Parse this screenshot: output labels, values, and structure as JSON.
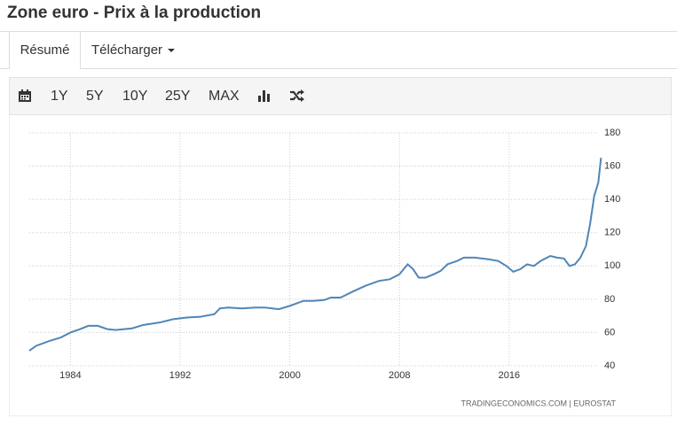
{
  "header": {
    "title": "Zone euro - Prix à la production"
  },
  "tabs": [
    "Résumé",
    "Télécharger"
  ],
  "toolbar": {
    "ranges": [
      "1Y",
      "5Y",
      "10Y",
      "25Y",
      "MAX"
    ]
  },
  "source": "TRADINGECONOMICS.COM  |  EUROSTAT",
  "chart_data": {
    "type": "line",
    "x": [
      1981,
      1981.5,
      1982.5,
      1983.3,
      1984,
      1984.7,
      1985.3,
      1986,
      1986.7,
      1987.3,
      1988.5,
      1989.3,
      1990.5,
      1991.5,
      1992.5,
      1993.5,
      1994.5,
      1994.9,
      1995.5,
      1996.5,
      1997.5,
      1998.2,
      1999.2,
      2000,
      2001,
      2001.7,
      2002.5,
      2003,
      2003.7,
      2004.7,
      2005.5,
      2006.5,
      2007.3,
      2008,
      2008.6,
      2009,
      2009.4,
      2009.9,
      2010.5,
      2011,
      2011.5,
      2012.2,
      2012.7,
      2013.5,
      2014.5,
      2015.2,
      2015.8,
      2016.3,
      2016.8,
      2017.3,
      2017.8,
      2018.3,
      2019,
      2019.5,
      2020,
      2020.4,
      2020.8,
      2021.2,
      2021.6,
      2021.9,
      2022.2,
      2022.5,
      2022.7
    ],
    "series": [
      {
        "color": "#4f86b8",
        "values": [
          49,
          52,
          55,
          57,
          60,
          62,
          64,
          64,
          62,
          61.5,
          62.5,
          64.5,
          66,
          68,
          69,
          69.5,
          71,
          74.5,
          75,
          74.5,
          75,
          75,
          74,
          76,
          79,
          79,
          79.5,
          81,
          81,
          85,
          88,
          91,
          92,
          95,
          101,
          98,
          93,
          93,
          95,
          97,
          101,
          103,
          105,
          105,
          104,
          103,
          100,
          96.5,
          98,
          101,
          100,
          103,
          106,
          105,
          104.5,
          100,
          101,
          105,
          112,
          125,
          142,
          150,
          165
        ]
      }
    ],
    "xlim": [
      1981,
      2023
    ],
    "xticks": [
      1984,
      1992,
      2000,
      2008,
      2016
    ],
    "ylim": [
      40,
      180
    ],
    "yticks": [
      40,
      60,
      80,
      100,
      120,
      140,
      160,
      180
    ],
    "grid": true
  }
}
